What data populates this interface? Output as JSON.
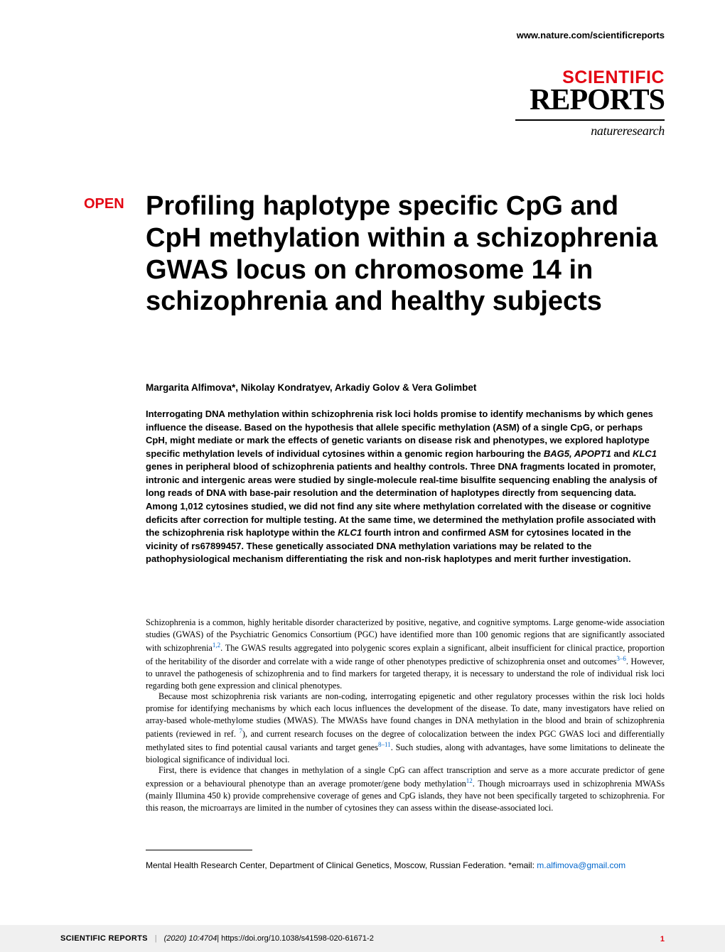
{
  "header": {
    "url": "www.nature.com/scientificreports"
  },
  "logo": {
    "line1": "SCIENTIFIC",
    "line2": "REPORTS",
    "sub": "natureresearch"
  },
  "badge": "OPEN",
  "title": "Profiling haplotype specific CpG and CpH methylation within a schizophrenia GWAS locus on chromosome 14 in schizophrenia and healthy subjects",
  "authors": "Margarita Alfimova*, Nikolay Kondratyev, Arkadiy Golov & Vera Golimbet",
  "abstract_parts": {
    "p1": "Interrogating DNA methylation within schizophrenia risk loci holds promise to identify mechanisms by which genes influence the disease. Based on the hypothesis that allele specific methylation (ASM) of a single CpG, or perhaps CpH, might mediate or mark the effects of genetic variants on disease risk and phenotypes, we explored haplotype specific methylation levels of individual cytosines within a genomic region harbouring the ",
    "genes": "BAG5, APOPT1",
    "p1b": " and ",
    "gene2": "KLC1",
    "p1c": " genes in peripheral blood of schizophrenia patients and healthy controls. Three DNA fragments located in promoter, intronic and intergenic areas were studied by single-molecule real-time bisulfite sequencing enabling the analysis of long reads of DNA with base-pair resolution and the determination of haplotypes directly from sequencing data. Among 1,012 cytosines studied, we did not find any site where methylation correlated with the disease or cognitive deficits after correction for multiple testing. At the same time, we determined the methylation profile associated with the schizophrenia risk haplotype within the ",
    "gene3": "KLC1",
    "p1d": " fourth intron and confirmed ASM for cytosines located in the vicinity of rs67899457. These genetically associated DNA methylation variations may be related to the pathophysiological mechanism differentiating the risk and non-risk haplotypes and merit further investigation."
  },
  "body": {
    "p1": "Schizophrenia is a common, highly heritable disorder characterized by positive, negative, and cognitive symptoms. Large genome-wide association studies (GWAS) of the Psychiatric Genomics Consortium (PGC) have identified more than 100 genomic regions that are significantly associated with schizophrenia",
    "ref1": "1,2",
    "p1b": ". The GWAS results aggregated into polygenic scores explain a significant, albeit insufficient for clinical practice, proportion of the heritability of the disorder and correlate with a wide range of other phenotypes predictive of schizophrenia onset and outcomes",
    "ref2": "3–6",
    "p1c": ". However, to unravel the pathogenesis of schizophrenia and to find markers for targeted therapy, it is necessary to understand the role of individual risk loci regarding both gene expression and clinical phenotypes.",
    "p2": "Because most schizophrenia risk variants are non-coding, interrogating epigenetic and other regulatory processes within the risk loci holds promise for identifying mechanisms by which each locus influences the development of the disease. To date, many investigators have relied on array-based whole-methylome studies (MWAS). The MWASs have found changes in DNA methylation in the blood and brain of schizophrenia patients (reviewed in ref. ",
    "ref3": "7",
    "p2b": "), and current research focuses on the degree of colocalization between the index PGC GWAS loci and differentially methylated sites to find potential causal variants and target genes",
    "ref4": "8–11",
    "p2c": ". Such studies, along with advantages, have some limitations to delineate the biological significance of individual loci.",
    "p3": "First, there is evidence that changes in methylation of a single CpG can affect transcription and serve as a more accurate predictor of gene expression or a behavioural phenotype than an average promoter/gene body methylation",
    "ref5": "12",
    "p3b": ". Though microarrays used in schizophrenia MWASs (mainly Illumina 450 k) provide comprehensive coverage of genes and CpG islands, they have not been specifically targeted to schizophrenia. For this reason, the microarrays are limited in the number of cytosines they can assess within the disease-associated loci."
  },
  "affiliation": {
    "text": "Mental Health Research Center, Department of Clinical Genetics, Moscow, Russian Federation. *email: ",
    "email": "m.alfimova@gmail.com"
  },
  "footer": {
    "journal": "SCIENTIFIC REPORTS",
    "citation": "(2020) 10:4704",
    "doi": " | https://doi.org/10.1038/s41598-020-61671-2",
    "page": "1"
  },
  "colors": {
    "red": "#e30613",
    "link": "#0066cc",
    "footer_bg": "#f0f0f0"
  }
}
